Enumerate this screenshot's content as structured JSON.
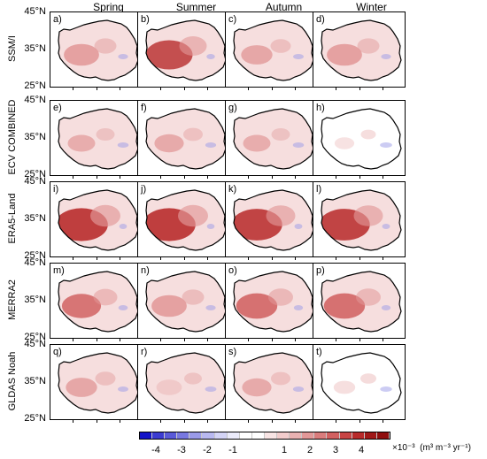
{
  "seasons": [
    "Spring",
    "Summer",
    "Autumn",
    "Winter"
  ],
  "datasets": [
    "SSM/I",
    "ECV COMBINED",
    "ERA5-Land",
    "MERRA2",
    "GLDAS Noah"
  ],
  "lat_labels": [
    "45°N",
    "35°N",
    "25°N"
  ],
  "panel_labels": [
    "a)",
    "b)",
    "c)",
    "d)",
    "e)",
    "f)",
    "g)",
    "h)",
    "i)",
    "j)",
    "k)",
    "l)",
    "m)",
    "n)",
    "o)",
    "p)",
    "q)",
    "r)",
    "s)",
    "t)"
  ],
  "colorbar": {
    "ticks": [
      "-4",
      "-3",
      "-2",
      "-1",
      "1",
      "2",
      "3",
      "4"
    ],
    "scale": "×10⁻³",
    "units": "(m³ m⁻³ yr⁻¹)",
    "colors": [
      "#1414c8",
      "#3c3cd2",
      "#5a5ad8",
      "#7878e0",
      "#9a9ae8",
      "#b8b8f0",
      "#d4d4f6",
      "#ebebfb",
      "#ffffff",
      "#ffffff",
      "#f8e4e4",
      "#f2cccc",
      "#eab2b2",
      "#e29898",
      "#da7c7c",
      "#d26060",
      "#c84444",
      "#b82a2a",
      "#a01818",
      "#900e0e"
    ]
  },
  "fill_intensity": [
    [
      0.45,
      0.75,
      0.35,
      0.45
    ],
    [
      0.25,
      0.3,
      0.25,
      0.05
    ],
    [
      0.9,
      0.9,
      0.85,
      0.85
    ],
    [
      0.55,
      0.45,
      0.6,
      0.6
    ],
    [
      0.35,
      0.2,
      0.3,
      0.1
    ]
  ]
}
